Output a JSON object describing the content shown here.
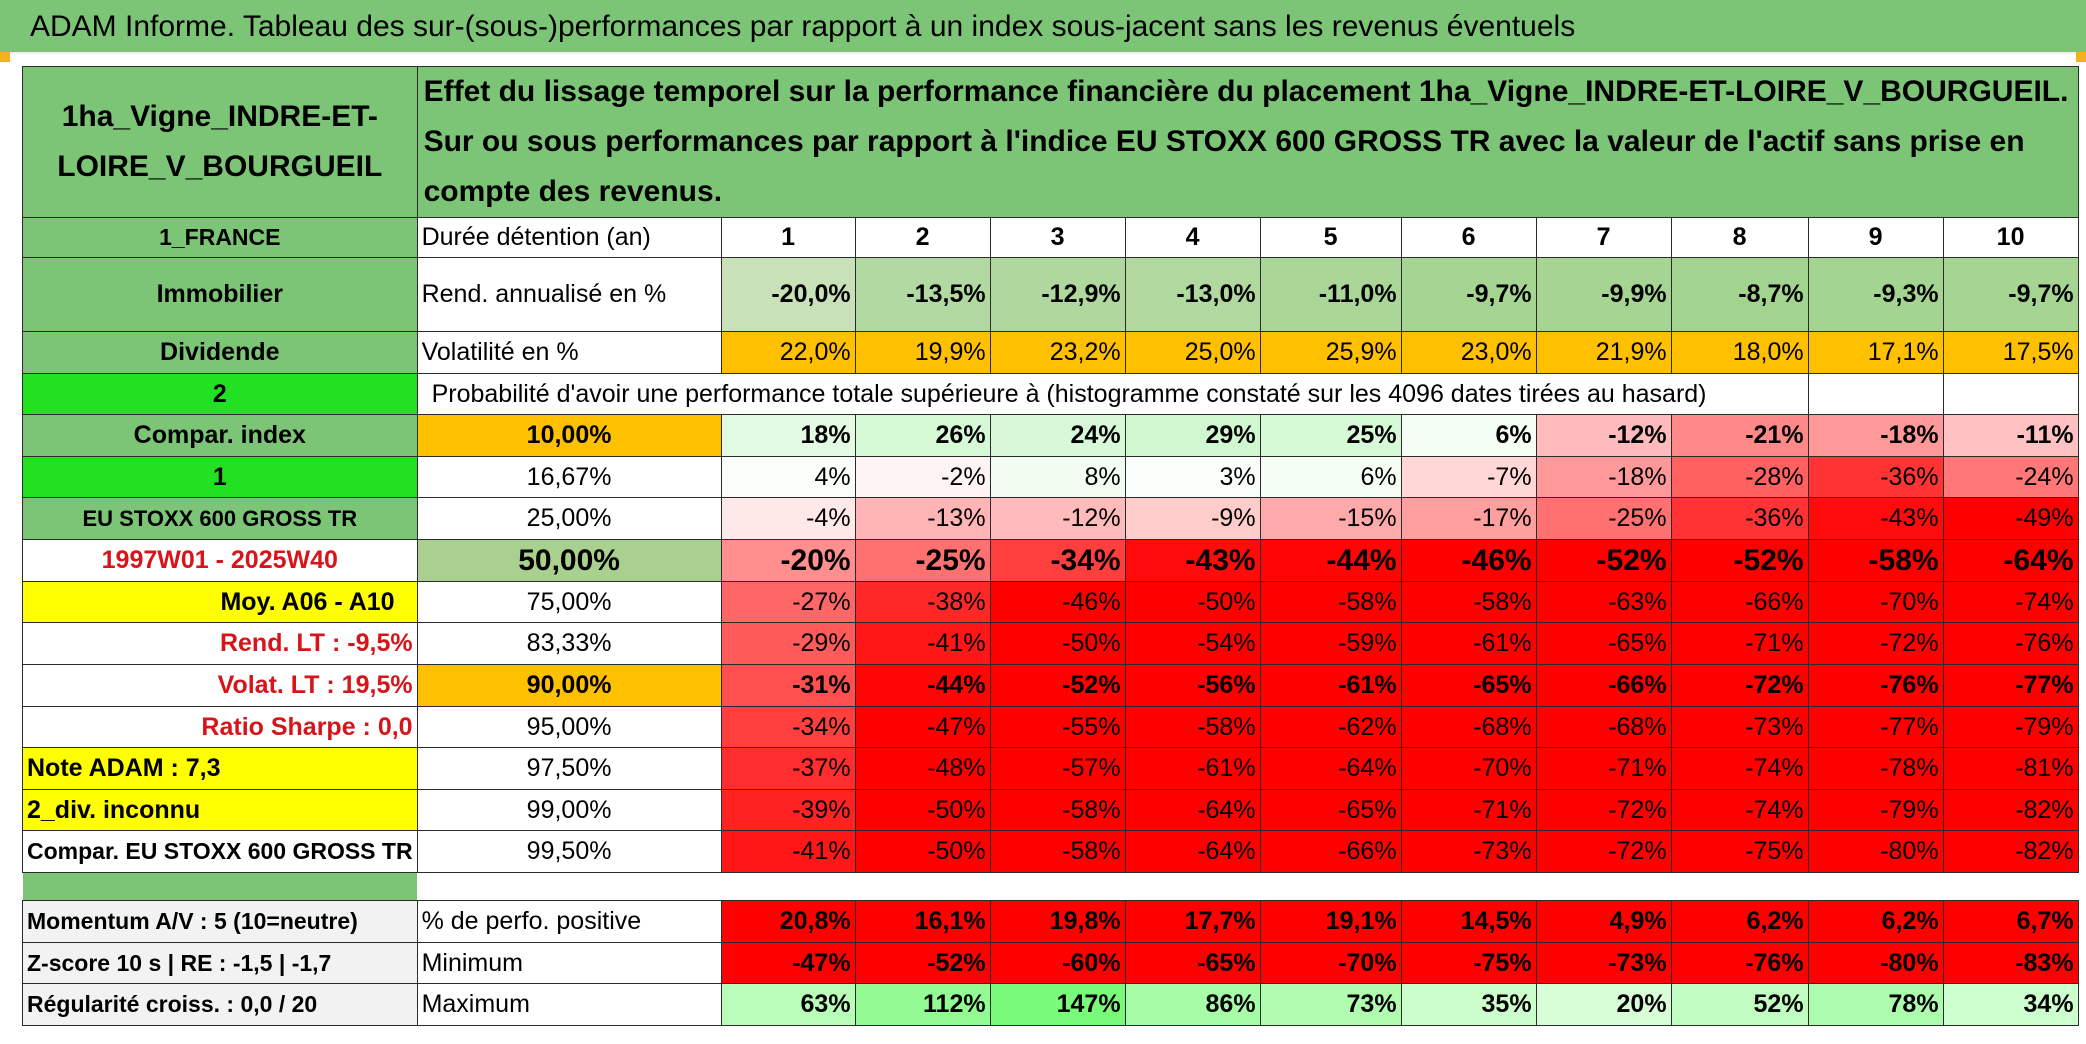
{
  "title": "ADAM Informe. Tableau des sur-(sous-)performances par rapport à un index sous-jacent sans les revenus éventuels",
  "asset_name": "1ha_Vigne_INDRE-ET-LOIRE_V_BOURGUEIL",
  "description": "Effet du lissage temporel sur la performance financière du placement 1ha_Vigne_INDRE-ET-LOIRE_V_BOURGUEIL. Sur ou sous performances par rapport à l'indice EU STOXX 600 GROSS TR avec la valeur de l'actif sans prise en compte des revenus.",
  "left_labels": {
    "country": "1_FRANCE",
    "category": "Immobilier",
    "dividend": "Dividende",
    "two": "2",
    "compar_index": "Compar. index",
    "one": "1",
    "index_name": "EU STOXX 600 GROSS TR",
    "period": "1997W01 - 2025W40",
    "moy": "Moy. A06 - A10",
    "rend_lt": "Rend. LT :    -9,5%",
    "volat_lt": "Volat. LT :    19,5%",
    "sharpe": "Ratio Sharpe :    0,0",
    "note": "Note ADAM : 7,3",
    "div": "2_div. inconnu",
    "compar_full": "Compar. EU STOXX 600 GROSS TR",
    "momentum": "Momentum A/V : 5 (10=neutre)",
    "zscore": "Z-score 10 s | RE : -1,5 | -1,7",
    "regularite": "Régularité croiss. : 0,0 / 20"
  },
  "row_labels": {
    "duree": "Durée détention (an)",
    "rend": "Rend. annualisé en %",
    "volat": "Volatilité en %",
    "proba": "Probabilité d'avoir une performance totale supérieure à (histogramme constaté sur les 4096 dates tirées au hasard)",
    "pct_pos": "% de perfo. positive",
    "min": "Minimum",
    "max": "Maximum"
  },
  "years": [
    "1",
    "2",
    "3",
    "4",
    "5",
    "6",
    "7",
    "8",
    "9",
    "10"
  ],
  "rendement": [
    "-20,0%",
    "-13,5%",
    "-12,9%",
    "-13,0%",
    "-11,0%",
    "-9,7%",
    "-9,9%",
    "-8,7%",
    "-9,3%",
    "-9,7%"
  ],
  "volatilite": [
    "22,0%",
    "19,9%",
    "23,2%",
    "25,0%",
    "25,9%",
    "23,0%",
    "21,9%",
    "18,0%",
    "17,1%",
    "17,5%"
  ],
  "quantile_rows": [
    {
      "pct": "10,00%",
      "values": [
        "18%",
        "26%",
        "24%",
        "29%",
        "25%",
        "6%",
        "-12%",
        "-21%",
        "-18%",
        "-11%"
      ]
    },
    {
      "pct": "16,67%",
      "values": [
        "4%",
        "-2%",
        "8%",
        "3%",
        "6%",
        "-7%",
        "-18%",
        "-28%",
        "-36%",
        "-24%"
      ]
    },
    {
      "pct": "25,00%",
      "values": [
        "-4%",
        "-13%",
        "-12%",
        "-9%",
        "-15%",
        "-17%",
        "-25%",
        "-36%",
        "-43%",
        "-49%"
      ]
    },
    {
      "pct": "50,00%",
      "values": [
        "-20%",
        "-25%",
        "-34%",
        "-43%",
        "-44%",
        "-46%",
        "-52%",
        "-52%",
        "-58%",
        "-64%"
      ]
    },
    {
      "pct": "75,00%",
      "values": [
        "-27%",
        "-38%",
        "-46%",
        "-50%",
        "-58%",
        "-58%",
        "-63%",
        "-66%",
        "-70%",
        "-74%"
      ]
    },
    {
      "pct": "83,33%",
      "values": [
        "-29%",
        "-41%",
        "-50%",
        "-54%",
        "-59%",
        "-61%",
        "-65%",
        "-71%",
        "-72%",
        "-76%"
      ]
    },
    {
      "pct": "90,00%",
      "values": [
        "-31%",
        "-44%",
        "-52%",
        "-56%",
        "-61%",
        "-65%",
        "-66%",
        "-72%",
        "-76%",
        "-77%"
      ]
    },
    {
      "pct": "95,00%",
      "values": [
        "-34%",
        "-47%",
        "-55%",
        "-58%",
        "-62%",
        "-68%",
        "-68%",
        "-73%",
        "-77%",
        "-79%"
      ]
    },
    {
      "pct": "97,50%",
      "values": [
        "-37%",
        "-48%",
        "-57%",
        "-61%",
        "-64%",
        "-70%",
        "-71%",
        "-74%",
        "-78%",
        "-81%"
      ]
    },
    {
      "pct": "99,00%",
      "values": [
        "-39%",
        "-50%",
        "-58%",
        "-64%",
        "-65%",
        "-71%",
        "-72%",
        "-74%",
        "-79%",
        "-82%"
      ]
    },
    {
      "pct": "99,50%",
      "values": [
        "-41%",
        "-50%",
        "-58%",
        "-64%",
        "-66%",
        "-73%",
        "-72%",
        "-75%",
        "-80%",
        "-82%"
      ]
    }
  ],
  "perfo_positive": [
    "20,8%",
    "16,1%",
    "19,8%",
    "17,7%",
    "19,1%",
    "14,5%",
    "4,9%",
    "6,2%",
    "6,2%",
    "6,7%"
  ],
  "minimum": [
    "-47%",
    "-52%",
    "-60%",
    "-65%",
    "-70%",
    "-75%",
    "-73%",
    "-76%",
    "-80%",
    "-83%"
  ],
  "maximum": [
    "63%",
    "112%",
    "147%",
    "86%",
    "73%",
    "35%",
    "20%",
    "52%",
    "78%",
    "34%"
  ],
  "colors": {
    "header_green": "#7cc576",
    "bright_green": "#22e022",
    "orange": "#ffc000",
    "yellow": "#ffff00",
    "red": "#ff0000",
    "label_red": "#d8141b"
  }
}
